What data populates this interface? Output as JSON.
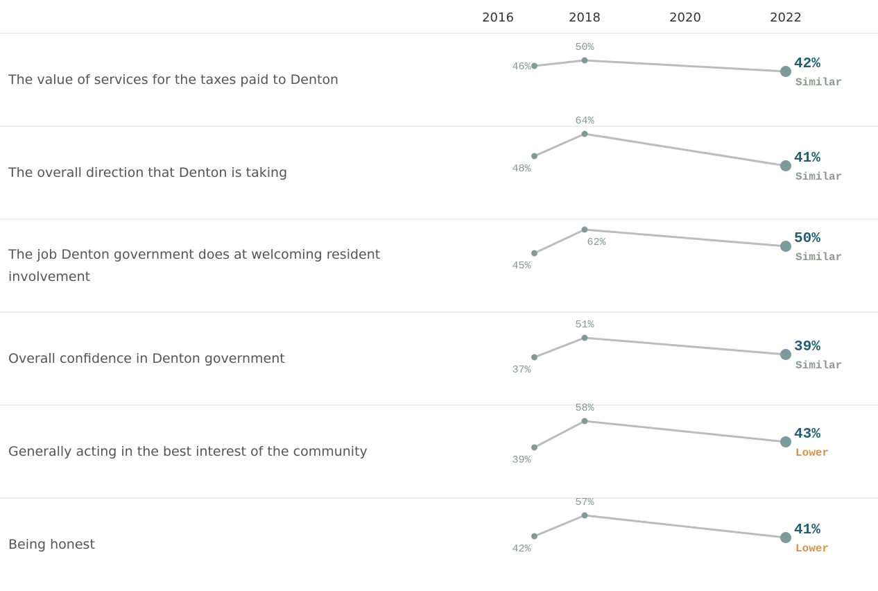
{
  "chart_data": {
    "type": "line",
    "x": [
      2017,
      2018,
      2022
    ],
    "xlim": [
      2016,
      2022
    ],
    "xticks": [
      2016,
      2018,
      2020,
      2022
    ],
    "ylim": [
      0,
      70
    ],
    "line_color": "#bcbcbc",
    "point_color": "#7f9a9a",
    "series": [
      {
        "name": "The value of services for the taxes paid to Denton",
        "values": [
          46,
          50,
          42
        ],
        "value_labels": [
          "46%",
          "50%",
          "42%"
        ],
        "status": "Similar",
        "status_color": "#8a9a8a"
      },
      {
        "name": "The overall direction that Denton is taking",
        "values": [
          48,
          64,
          41
        ],
        "value_labels": [
          "48%",
          "64%",
          "41%"
        ],
        "status": "Similar",
        "status_color": "#8a9a8a"
      },
      {
        "name": "The job Denton government does at welcoming resident involvement",
        "values": [
          45,
          62,
          50
        ],
        "value_labels": [
          "45%",
          "62%",
          "50%"
        ],
        "status": "Similar",
        "status_color": "#8a9a8a"
      },
      {
        "name": "Overall confidence in Denton government",
        "values": [
          37,
          51,
          39
        ],
        "value_labels": [
          "37%",
          "51%",
          "39%"
        ],
        "status": "Similar",
        "status_color": "#8a9a8a"
      },
      {
        "name": "Generally acting in the best interest of the community",
        "values": [
          39,
          58,
          43
        ],
        "value_labels": [
          "39%",
          "58%",
          "43%"
        ],
        "status": "Lower",
        "status_color": "#d4954a"
      },
      {
        "name": "Being honest",
        "values": [
          42,
          57,
          41
        ],
        "value_labels": [
          "42%",
          "57%",
          "41%"
        ],
        "status": "Lower",
        "status_color": "#d4954a"
      }
    ]
  }
}
